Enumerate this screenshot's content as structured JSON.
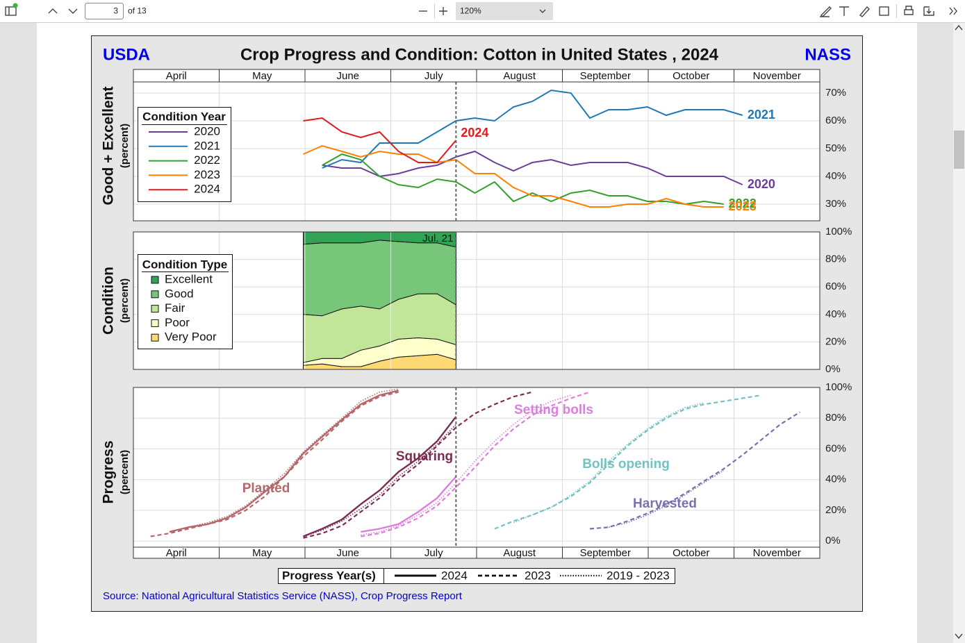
{
  "toolbar": {
    "page": "3",
    "of": "of 13",
    "zoom": "120%"
  },
  "header": {
    "left": "USDA",
    "title": "Crop Progress and Condition: Cotton in United States , 2024",
    "right": "NASS"
  },
  "months": [
    "April",
    "May",
    "June",
    "July",
    "August",
    "September",
    "October",
    "November"
  ],
  "source": "Source: National Agricultural Statistics Service (NASS), Crop Progress Report",
  "chart_data": [
    {
      "type": "line",
      "ylabel": "Good + Excellent",
      "ylabel_unit": "(percent)",
      "legend_title": "Condition Year",
      "xlim": [
        4,
        12
      ],
      "xticks": [
        4,
        5,
        6,
        7,
        8,
        9,
        10,
        11,
        12
      ],
      "ylim": [
        24,
        74
      ],
      "yticks": [
        {
          "value": 30,
          "label": "30%"
        },
        {
          "value": 40,
          "label": "40%"
        },
        {
          "value": 50,
          "label": "50%"
        },
        {
          "value": 60,
          "label": "60%"
        },
        {
          "value": 70,
          "label": "70%"
        }
      ],
      "x": [
        5.98,
        6.2,
        6.43,
        6.65,
        6.87,
        7.09,
        7.32,
        7.54,
        7.76,
        7.98,
        8.21,
        8.43,
        8.65,
        8.87,
        9.1,
        9.32,
        9.54,
        9.76,
        9.99,
        10.21,
        10.43,
        10.65,
        10.88,
        11.1
      ],
      "series": [
        {
          "name": "2020",
          "color": "#6a3d9a",
          "values": [
            null,
            44,
            43,
            43,
            40,
            41,
            43,
            44,
            47,
            49,
            45,
            42,
            45,
            46,
            44,
            45,
            45,
            45,
            43,
            40,
            40,
            40,
            40,
            37
          ]
        },
        {
          "name": "2021",
          "color": "#1f78b4",
          "values": [
            null,
            43,
            46,
            45,
            52,
            52,
            52,
            56,
            60,
            61,
            60,
            65,
            67,
            71,
            70,
            61,
            64,
            64,
            65,
            62,
            64,
            64,
            64,
            62
          ]
        },
        {
          "name": "2022",
          "color": "#33a02c",
          "values": [
            null,
            44,
            48,
            46,
            40,
            37,
            36,
            39,
            38,
            34,
            38,
            31,
            34,
            31,
            34,
            35,
            33,
            33,
            31,
            31,
            30,
            31,
            30,
            null
          ]
        },
        {
          "name": "2023",
          "color": "#ff7f00",
          "values": [
            48,
            51,
            49,
            47,
            49,
            48,
            48,
            45,
            46,
            41,
            41,
            36,
            33,
            33,
            31,
            29,
            29,
            30,
            30,
            32,
            30,
            29,
            29,
            null
          ]
        },
        {
          "name": "2024",
          "color": "#e31a1c",
          "values": [
            60,
            61,
            56,
            54,
            56,
            49,
            45,
            45,
            53,
            null,
            null,
            null,
            null,
            null,
            null,
            null,
            null,
            null,
            null,
            null,
            null,
            null,
            null,
            null
          ]
        }
      ]
    },
    {
      "type": "area",
      "ylabel": "Condition",
      "ylabel_unit": "(percent)",
      "legend_title": "Condition Type",
      "annotation": "Jul. 21",
      "marker_x": 7.76,
      "xlim": [
        4,
        12
      ],
      "xticks": [
        4,
        5,
        6,
        7,
        8,
        9,
        10,
        11,
        12
      ],
      "ylim": [
        0,
        100
      ],
      "yticks": [
        {
          "value": 0,
          "label": "0%"
        },
        {
          "value": 20,
          "label": "20%"
        },
        {
          "value": 40,
          "label": "40%"
        },
        {
          "value": 60,
          "label": "60%"
        },
        {
          "value": 80,
          "label": "80%"
        },
        {
          "value": 100,
          "label": "100%"
        }
      ],
      "x": [
        5.98,
        6.2,
        6.43,
        6.65,
        6.87,
        7.09,
        7.32,
        7.54,
        7.76
      ],
      "series": [
        {
          "name": "Excellent",
          "color": "#31a354",
          "values": [
            9,
            8,
            8,
            8,
            6,
            7,
            8,
            8,
            11
          ]
        },
        {
          "name": "Good",
          "color": "#78c679",
          "values": [
            51,
            53,
            48,
            46,
            50,
            42,
            37,
            37,
            42
          ]
        },
        {
          "name": "Fair",
          "color": "#c2e699",
          "values": [
            35,
            31,
            36,
            32,
            27,
            29,
            32,
            33,
            29
          ]
        },
        {
          "name": "Poor",
          "color": "#ffffcc",
          "values": [
            2,
            4,
            6,
            12,
            11,
            13,
            13,
            11,
            11
          ]
        },
        {
          "name": "Very Poor",
          "color": "#fed976",
          "values": [
            3,
            4,
            2,
            2,
            6,
            9,
            10,
            11,
            7
          ]
        }
      ]
    },
    {
      "type": "line",
      "ylabel": "Progress",
      "ylabel_unit": "(percent)",
      "legend": {
        "title": "Progress Year(s)",
        "items": [
          {
            "label": "2024",
            "dash": "solid"
          },
          {
            "label": "2023",
            "dash": "dashed"
          },
          {
            "label": "2019 - 2023",
            "dash": "dotted"
          }
        ]
      },
      "xlim": [
        4,
        12
      ],
      "xticks": [
        4,
        5,
        6,
        7,
        8,
        9,
        10,
        11,
        12
      ],
      "ylim": [
        -4,
        100
      ],
      "yticks": [
        {
          "value": 0,
          "label": "0%"
        },
        {
          "value": 20,
          "label": "20%"
        },
        {
          "value": 40,
          "label": "40%"
        },
        {
          "value": 60,
          "label": "60%"
        },
        {
          "value": 80,
          "label": "80%"
        },
        {
          "value": 100,
          "label": "100%"
        }
      ],
      "x": [
        4.2,
        4.42,
        4.64,
        4.87,
        5.09,
        5.31,
        5.53,
        5.76,
        5.98,
        6.2,
        6.43,
        6.65,
        6.87,
        7.09,
        7.32,
        7.54,
        7.76,
        7.98,
        8.21,
        8.43,
        8.65,
        8.87,
        9.1,
        9.32,
        9.54,
        9.76,
        9.99,
        10.21,
        10.43,
        10.65,
        10.88,
        11.1,
        11.32,
        11.54,
        11.77
      ],
      "series": [
        {
          "name": "Planted",
          "color": "#b5676b",
          "lines": [
            {
              "style": 0,
              "values": [
                null,
                6,
                9,
                11,
                15,
                22,
                32,
                42,
                57,
                68,
                79,
                89,
                95,
                98,
                null,
                null,
                null,
                null,
                null,
                null,
                null,
                null,
                null,
                null,
                null,
                null,
                null,
                null,
                null,
                null,
                null,
                null,
                null,
                null,
                null
              ]
            },
            {
              "style": 1,
              "values": [
                3,
                5,
                8,
                11,
                14,
                20,
                29,
                42,
                55,
                66,
                78,
                88,
                94,
                97,
                null,
                null,
                null,
                null,
                null,
                null,
                null,
                null,
                null,
                null,
                null,
                null,
                null,
                null,
                null,
                null,
                null,
                null,
                null,
                null,
                null
              ]
            },
            {
              "style": 2,
              "values": [
                null,
                6,
                9,
                12,
                16,
                23,
                33,
                44,
                58,
                69,
                80,
                91,
                97,
                99,
                null,
                null,
                null,
                null,
                null,
                null,
                null,
                null,
                null,
                null,
                null,
                null,
                null,
                null,
                null,
                null,
                null,
                null,
                null,
                null,
                null
              ]
            }
          ]
        },
        {
          "name": "Squaring",
          "color": "#7b2d52",
          "lines": [
            {
              "style": 0,
              "values": [
                null,
                null,
                null,
                null,
                null,
                null,
                null,
                null,
                3,
                8,
                14,
                24,
                33,
                45,
                54,
                65,
                81,
                null,
                null,
                null,
                null,
                null,
                null,
                null,
                null,
                null,
                null,
                null,
                null,
                null,
                null,
                null,
                null,
                null,
                null
              ]
            },
            {
              "style": 1,
              "values": [
                null,
                null,
                null,
                null,
                null,
                null,
                null,
                null,
                2,
                5,
                10,
                19,
                28,
                40,
                50,
                62,
                74,
                83,
                89,
                94,
                97,
                null,
                null,
                null,
                null,
                null,
                null,
                null,
                null,
                null,
                null,
                null,
                null,
                null,
                null
              ]
            },
            {
              "style": 2,
              "values": [
                null,
                null,
                null,
                null,
                null,
                null,
                null,
                null,
                3,
                7,
                13,
                21,
                30,
                42,
                52,
                63,
                76,
                null,
                null,
                null,
                null,
                null,
                null,
                null,
                null,
                null,
                null,
                null,
                null,
                null,
                null,
                null,
                null,
                null,
                null
              ]
            }
          ]
        },
        {
          "name": "Setting bolls",
          "color": "#dd7ddd",
          "lines": [
            {
              "style": 0,
              "values": [
                null,
                null,
                null,
                null,
                null,
                null,
                null,
                null,
                null,
                null,
                null,
                6,
                8,
                11,
                19,
                28,
                42,
                null,
                null,
                null,
                null,
                null,
                null,
                null,
                null,
                null,
                null,
                null,
                null,
                null,
                null,
                null,
                null,
                null,
                null
              ]
            },
            {
              "style": 1,
              "values": [
                null,
                null,
                null,
                null,
                null,
                null,
                null,
                null,
                null,
                null,
                null,
                3,
                5,
                9,
                15,
                23,
                35,
                48,
                62,
                73,
                82,
                88,
                93,
                97,
                null,
                null,
                null,
                null,
                null,
                null,
                null,
                null,
                null,
                null,
                null
              ]
            },
            {
              "style": 2,
              "values": [
                null,
                null,
                null,
                null,
                null,
                null,
                null,
                null,
                null,
                null,
                null,
                4,
                6,
                10,
                17,
                25,
                38,
                52,
                65,
                76,
                85,
                91,
                95,
                null,
                null,
                null,
                null,
                null,
                null,
                null,
                null,
                null,
                null,
                null,
                null
              ]
            }
          ]
        },
        {
          "name": "Bolls opening",
          "color": "#72c2c2",
          "lines": [
            {
              "style": 1,
              "values": [
                null,
                null,
                null,
                null,
                null,
                null,
                null,
                null,
                null,
                null,
                null,
                null,
                null,
                null,
                null,
                null,
                null,
                null,
                8,
                13,
                17,
                22,
                29,
                38,
                50,
                62,
                72,
                80,
                86,
                89,
                91,
                93,
                95,
                null,
                null
              ]
            },
            {
              "style": 2,
              "values": [
                null,
                null,
                null,
                null,
                null,
                null,
                null,
                null,
                null,
                null,
                null,
                null,
                null,
                null,
                null,
                null,
                null,
                null,
                null,
                12,
                17,
                22,
                30,
                39,
                52,
                63,
                73,
                81,
                87,
                90,
                null,
                null,
                null,
                null,
                null
              ]
            }
          ]
        },
        {
          "name": "Harvested",
          "color": "#7a70b0",
          "lines": [
            {
              "style": 1,
              "values": [
                null,
                null,
                null,
                null,
                null,
                null,
                null,
                null,
                null,
                null,
                null,
                null,
                null,
                null,
                null,
                null,
                null,
                null,
                null,
                null,
                null,
                null,
                null,
                8,
                9,
                13,
                18,
                24,
                31,
                39,
                47,
                56,
                66,
                76,
                84
              ]
            },
            {
              "style": 2,
              "values": [
                null,
                null,
                null,
                null,
                null,
                null,
                null,
                null,
                null,
                null,
                null,
                null,
                null,
                null,
                null,
                null,
                null,
                null,
                null,
                null,
                null,
                null,
                null,
                null,
                9,
                12,
                17,
                23,
                30,
                38,
                46,
                null,
                null,
                null,
                null
              ]
            }
          ]
        }
      ]
    }
  ]
}
